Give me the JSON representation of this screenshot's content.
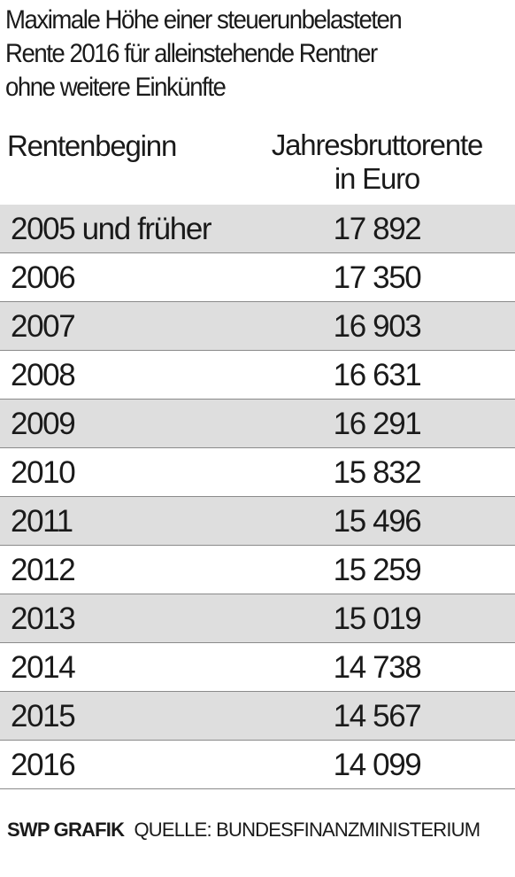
{
  "chart_data": {
    "type": "table",
    "title_lines": [
      "Maximale Höhe einer steuerunbelasteten",
      "Rente 2016 für alleinstehende Rentner",
      "ohne weitere Einkünfte"
    ],
    "columns": {
      "col1": "Rentenbeginn",
      "col2_lines": [
        "Jahresbruttorente",
        "in Euro"
      ]
    },
    "rows": [
      {
        "label": "2005 und früher",
        "value": "17 892"
      },
      {
        "label": "2006",
        "value": "17 350"
      },
      {
        "label": "2007",
        "value": "16 903"
      },
      {
        "label": "2008",
        "value": "16 631"
      },
      {
        "label": "2009",
        "value": "16 291"
      },
      {
        "label": "2010",
        "value": "15 832"
      },
      {
        "label": "2011",
        "value": "15 496"
      },
      {
        "label": "2012",
        "value": "15 259"
      },
      {
        "label": "2013",
        "value": "15 019"
      },
      {
        "label": "2014",
        "value": "14 738"
      },
      {
        "label": "2015",
        "value": "14 567"
      },
      {
        "label": "2016",
        "value": "14 099"
      }
    ],
    "shading": "alternate rows gray starting with first row"
  },
  "footer": {
    "brand": "SWP GRAFIK",
    "source": "QUELLE: BUNDESFINANZMINISTERIUM"
  },
  "colors": {
    "shade": "#dedede",
    "text": "#1a1a1a",
    "rule": "#8a8a8a"
  }
}
